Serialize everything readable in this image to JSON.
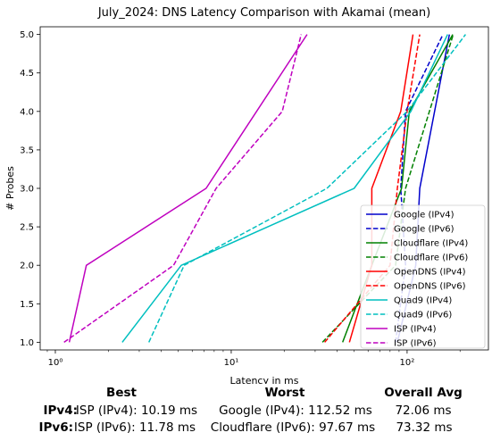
{
  "chart_data": {
    "type": "line",
    "title": "July_2024: DNS Latency Comparison with Akamai (mean)",
    "xlabel": "Latency in ms",
    "ylabel": "# Probes",
    "xscale": "log",
    "xlim": [
      0.82,
      290
    ],
    "ylim": [
      0.9,
      5.1
    ],
    "xticks": [
      1,
      10,
      100
    ],
    "xtick_labels": [
      "10⁰",
      "10¹",
      "10²"
    ],
    "yticks": [
      1.0,
      1.5,
      2.0,
      2.5,
      3.0,
      3.5,
      4.0,
      4.5,
      5.0
    ],
    "ytick_labels": [
      "1.0",
      "1.5",
      "2.0",
      "2.5",
      "3.0",
      "3.5",
      "4.0",
      "4.5",
      "5.0"
    ],
    "legend_position": "lower right",
    "grid": false,
    "series": [
      {
        "name": "Google (IPv4)",
        "color": "#0000cc",
        "dash": "solid",
        "x": [
          88,
          112,
          118,
          174
        ],
        "y": [
          1,
          2,
          3,
          5
        ]
      },
      {
        "name": "Google (IPv6)",
        "color": "#0000cc",
        "dash": "dashed",
        "x": [
          86,
          98,
          92,
          98,
          160
        ],
        "y": [
          1,
          2,
          3,
          4,
          5
        ]
      },
      {
        "name": "Cloudflare (IPv4)",
        "color": "#008000",
        "dash": "solid",
        "x": [
          43,
          63,
          93,
          103,
          182
        ],
        "y": [
          1,
          2,
          3,
          4,
          5
        ]
      },
      {
        "name": "Cloudflare (IPv6)",
        "color": "#008000",
        "dash": "dashed",
        "x": [
          33,
          86,
          98,
          183
        ],
        "y": [
          1,
          2,
          3,
          5
        ]
      },
      {
        "name": "OpenDNS (IPv4)",
        "color": "#ff0000",
        "dash": "solid",
        "x": [
          47,
          63,
          63,
          92,
          108
        ],
        "y": [
          1,
          2,
          3,
          4,
          5
        ]
      },
      {
        "name": "OpenDNS (IPv6)",
        "color": "#ff0000",
        "dash": "dashed",
        "x": [
          34,
          80,
          88,
          100,
          118
        ],
        "y": [
          1,
          2,
          3,
          4,
          5
        ]
      },
      {
        "name": "Quad9 (IPv4)",
        "color": "#00bfbf",
        "dash": "solid",
        "x": [
          2.4,
          5.2,
          50,
          105,
          170
        ],
        "y": [
          1,
          2,
          3,
          4,
          5
        ]
      },
      {
        "name": "Quad9 (IPv6)",
        "color": "#00bfbf",
        "dash": "dashed",
        "x": [
          3.4,
          5.4,
          35,
          100,
          215
        ],
        "y": [
          1,
          2,
          3,
          4,
          5
        ]
      },
      {
        "name": "ISP (IPv4)",
        "color": "#bf00bf",
        "dash": "solid",
        "x": [
          1.2,
          1.5,
          7.2,
          27
        ],
        "y": [
          1,
          2,
          3,
          5
        ]
      },
      {
        "name": "ISP (IPv6)",
        "color": "#bf00bf",
        "dash": "dashed",
        "x": [
          1.12,
          4.7,
          8.2,
          19.5,
          25
        ],
        "y": [
          1,
          2,
          3,
          4,
          5
        ]
      }
    ]
  },
  "summary": {
    "headers": {
      "best": "Best",
      "worst": "Worst",
      "avg": "Overall Avg"
    },
    "rows": [
      {
        "proto": "IPv4:",
        "best": "ISP (IPv4): 10.19 ms",
        "worst": "Google (IPv4): 112.52 ms",
        "avg": "72.06 ms"
      },
      {
        "proto": "IPv6:",
        "best": "ISP (IPv6): 11.78 ms",
        "worst": "Cloudflare (IPv6): 97.67 ms",
        "avg": "73.32 ms"
      }
    ]
  }
}
